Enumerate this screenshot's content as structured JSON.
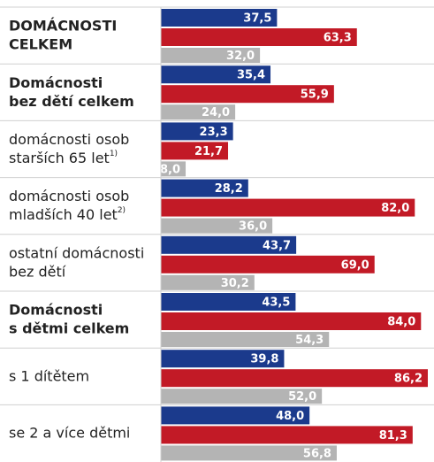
{
  "chart_data": {
    "type": "bar",
    "orientation": "horizontal",
    "categories": [
      [
        "DOMÁCNOSTI",
        "CELKEM"
      ],
      [
        "Domácnosti",
        "bez dětí celkem"
      ],
      [
        "domácnosti osob",
        "starších 65 let"
      ],
      [
        "domácnosti osob",
        "mladších 40 let"
      ],
      [
        "ostatní domácnosti",
        "bez dětí"
      ],
      [
        "Domácnosti",
        "s dětmi celkem"
      ],
      [
        "s 1 dítětem"
      ],
      [
        "se 2 a více dětmi"
      ]
    ],
    "label_notes": [
      null,
      null,
      "1)",
      "2)",
      null,
      null,
      null,
      null
    ],
    "bold": [
      true,
      true,
      false,
      false,
      false,
      true,
      false,
      false
    ],
    "series": [
      {
        "color": "#1b3a8c",
        "values": [
          37.5,
          35.4,
          23.3,
          28.2,
          43.7,
          43.5,
          39.8,
          48.0
        ],
        "value_labels": [
          "37,5",
          "35,4",
          "23,3",
          "28,2",
          "43,7",
          "43,5",
          "39,8",
          "48,0"
        ]
      },
      {
        "color": "#c21a26",
        "values": [
          63.3,
          55.9,
          21.7,
          82.0,
          69.0,
          84.0,
          86.2,
          81.3
        ],
        "value_labels": [
          "63,3",
          "55,9",
          "21,7",
          "82,0",
          "69,0",
          "84,0",
          "86,2",
          "81,3"
        ]
      },
      {
        "color": "#b4b4b4",
        "values": [
          32.0,
          24.0,
          8.0,
          36.0,
          30.2,
          54.3,
          52.0,
          56.8
        ],
        "value_labels": [
          "32,0",
          "24,0",
          "8,0",
          "36,0",
          "30,2",
          "54,3",
          "52,0",
          "56,8"
        ]
      }
    ]
  }
}
